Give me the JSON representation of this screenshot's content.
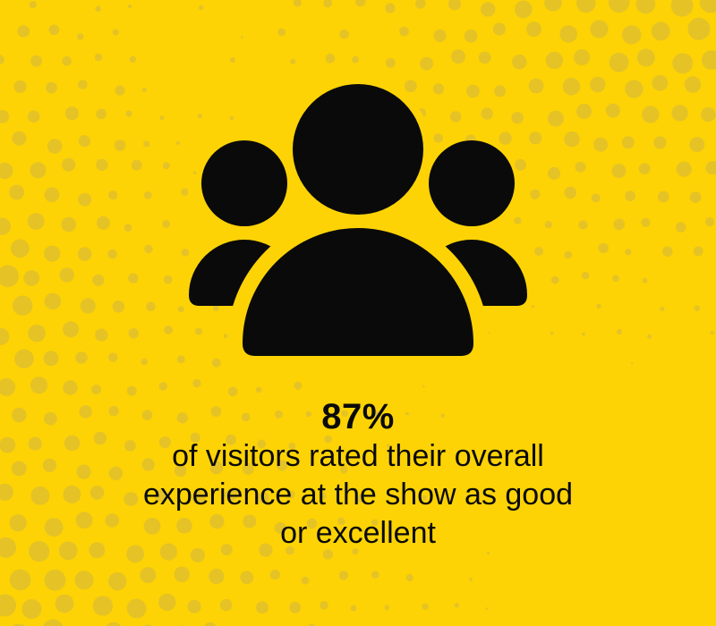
{
  "theme": {
    "background_color": "#FDD305",
    "dot_color": "#E5C326",
    "icon_color": "#0A0A0A",
    "text_color": "#0A0A0A"
  },
  "infographic": {
    "icon": "people-group-icon",
    "stat_value": "87%",
    "caption_lines": [
      "of visitors rated their overall",
      "experience at the show as good",
      "or excellent"
    ]
  }
}
